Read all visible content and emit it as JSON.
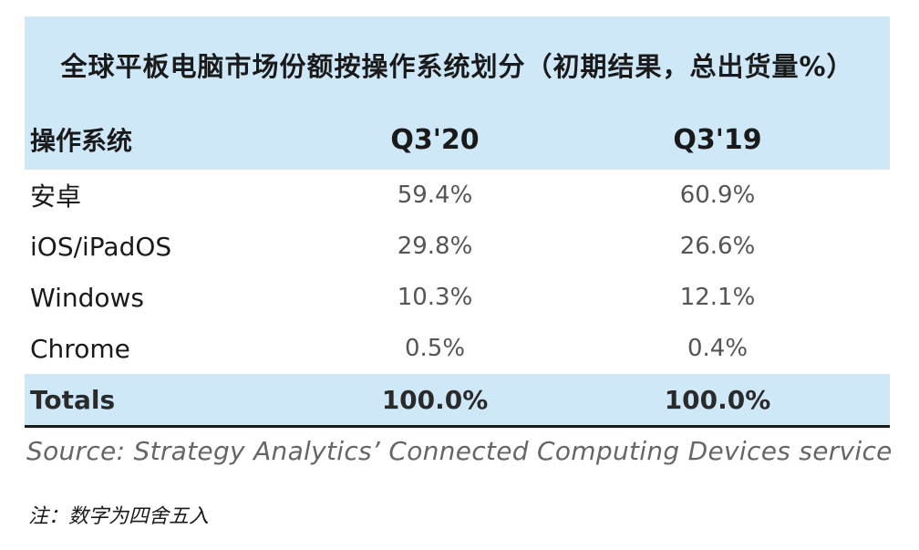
{
  "title": "全球平板电脑市场份额按操作系统划分（初期结果，总出货量%）",
  "chart_data": {
    "type": "table",
    "columns": [
      "操作系统",
      "Q3'20",
      "Q3'19"
    ],
    "rows": [
      {
        "os": "安卓",
        "q3_20": "59.4%",
        "q3_19": "60.9%"
      },
      {
        "os": "iOS/iPadOS",
        "q3_20": "29.8%",
        "q3_19": "26.6%"
      },
      {
        "os": "Windows",
        "q3_20": "10.3%",
        "q3_19": "12.1%"
      },
      {
        "os": "Chrome",
        "q3_20": "0.5%",
        "q3_19": "0.4%"
      }
    ],
    "totals": {
      "label": "Totals",
      "q3_20": "100.0%",
      "q3_19": "100.0%"
    }
  },
  "source": "Source: Strategy Analytics’ Connected Computing Devices service",
  "note": "注：数字为四舍五入",
  "colors": {
    "band": "#cfe8f8",
    "rule": "#1a1a1a"
  }
}
